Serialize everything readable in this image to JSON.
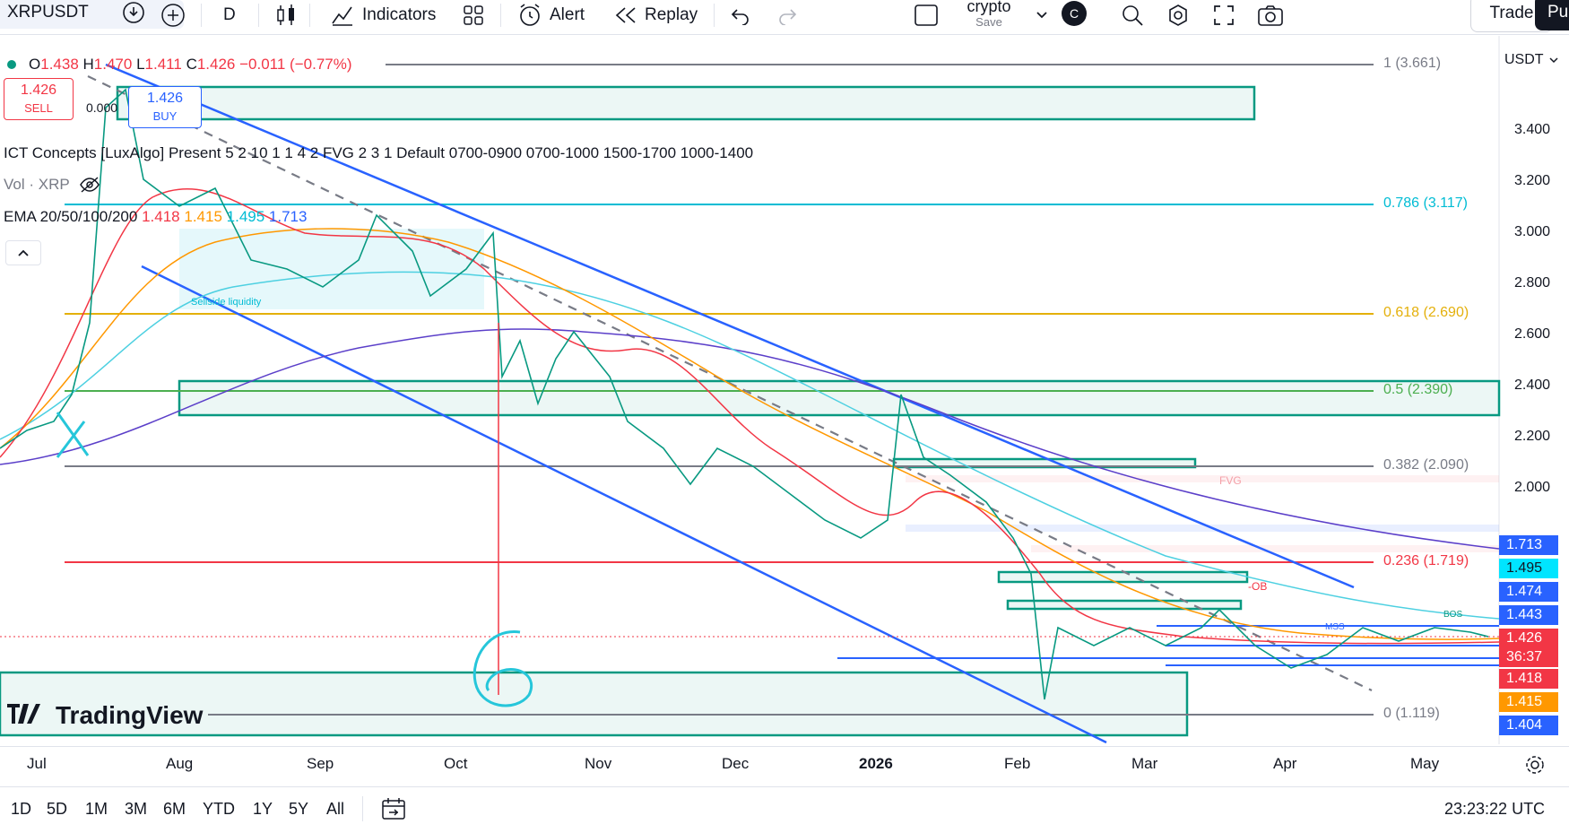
{
  "toolbar": {
    "symbol": "XRPUSDT",
    "interval": "D",
    "indicators_label": "Indicators",
    "alert_label": "Alert",
    "replay_label": "Replay",
    "layout_name": "crypto",
    "layout_save": "Save",
    "avatar_letter": "C",
    "trade_label": "Trade",
    "publish_label": "Pu"
  },
  "legend": {
    "o_label": "O",
    "o": "1.438",
    "h_label": "H",
    "h": "1.470",
    "l_label": "L",
    "l": "1.411",
    "c_label": "C",
    "c": "1.426",
    "change": "−0.011 (−0.77%)",
    "sell_price": "1.426",
    "sell_label": "SELL",
    "spread": "0.000",
    "buy_price": "1.426",
    "buy_label": "BUY",
    "ict": "ICT Concepts [LuxAlgo] Present 5 2 10 1 1 4 2 FVG 2 3 1 Default 0700-0900 0700-1000 1500-1700 1000-1400",
    "vol": "Vol · XRP",
    "ema_title": "EMA 20/50/100/200",
    "ema20": "1.418",
    "ema50": "1.415",
    "ema100": "1.495",
    "ema200": "1.713"
  },
  "currency": "USDT",
  "price_axis": [
    "3.400",
    "3.200",
    "3.000",
    "2.800",
    "2.600",
    "2.400",
    "2.200",
    "2.000"
  ],
  "price_tags": [
    {
      "value": "1.713",
      "color": "#2962ff"
    },
    {
      "value": "1.495",
      "color": "#00e5ff"
    },
    {
      "value": "1.474",
      "color": "#2962ff"
    },
    {
      "value": "1.443",
      "color": "#2962ff"
    },
    {
      "value": "1.426",
      "color": "#f23645"
    },
    {
      "value": "36:37",
      "color": "#f23645"
    },
    {
      "value": "1.418",
      "color": "#f23645"
    },
    {
      "value": "1.415",
      "color": "#ff9800"
    },
    {
      "value": "1.404",
      "color": "#2962ff"
    }
  ],
  "fib": [
    {
      "label": "1 (3.661)",
      "color": "#787b86"
    },
    {
      "label": "0.786 (3.117)",
      "color": "#00bcd4"
    },
    {
      "label": "0.618 (2.690)",
      "color": "#e4b00b"
    },
    {
      "label": "0.5 (2.390)",
      "color": "#4caf50"
    },
    {
      "label": "0.382 (2.090)",
      "color": "#787b86"
    },
    {
      "label": "0.236 (1.719)",
      "color": "#f23645"
    },
    {
      "label": "0 (1.119)",
      "color": "#787b86"
    }
  ],
  "annotations": {
    "sellside": "Sellside liquidity",
    "fvg": "FVG",
    "ob": "-OB",
    "bos": "BOS",
    "mss": "MSS",
    "watermark": "TradingView",
    "handwritten": "6"
  },
  "time_axis": [
    "Jul",
    "Aug",
    "Sep",
    "Oct",
    "Nov",
    "Dec",
    "2026",
    "Feb",
    "Mar",
    "Apr",
    "May"
  ],
  "ranges": [
    "1D",
    "5D",
    "1M",
    "3M",
    "6M",
    "YTD",
    "1Y",
    "5Y",
    "All"
  ],
  "clock": "23:23:22 UTC",
  "colors": {
    "up": "#089981",
    "down": "#f23645",
    "channel": "#2962ff",
    "zone": "#089981"
  }
}
